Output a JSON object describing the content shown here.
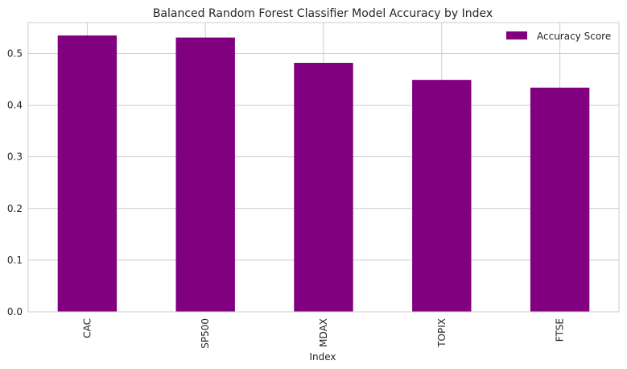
{
  "chart_data": {
    "type": "bar",
    "title": "Balanced Random Forest Classifier Model Accuracy by Index",
    "xlabel": "Index",
    "ylabel": "",
    "categories": [
      "CAC",
      "SP500",
      "MDAX",
      "TOPIX",
      "FTSE"
    ],
    "series": [
      {
        "name": "Accuracy Score",
        "values": [
          0.535,
          0.531,
          0.482,
          0.449,
          0.434
        ]
      }
    ],
    "ylim": [
      0,
      0.56
    ],
    "yticks": [
      "0.0",
      "0.1",
      "0.2",
      "0.3",
      "0.4",
      "0.5"
    ],
    "grid": true,
    "legend": "top-right",
    "colors": {
      "bar": "#800080",
      "grid": "#cccccc",
      "frame": "#cccccc"
    }
  }
}
